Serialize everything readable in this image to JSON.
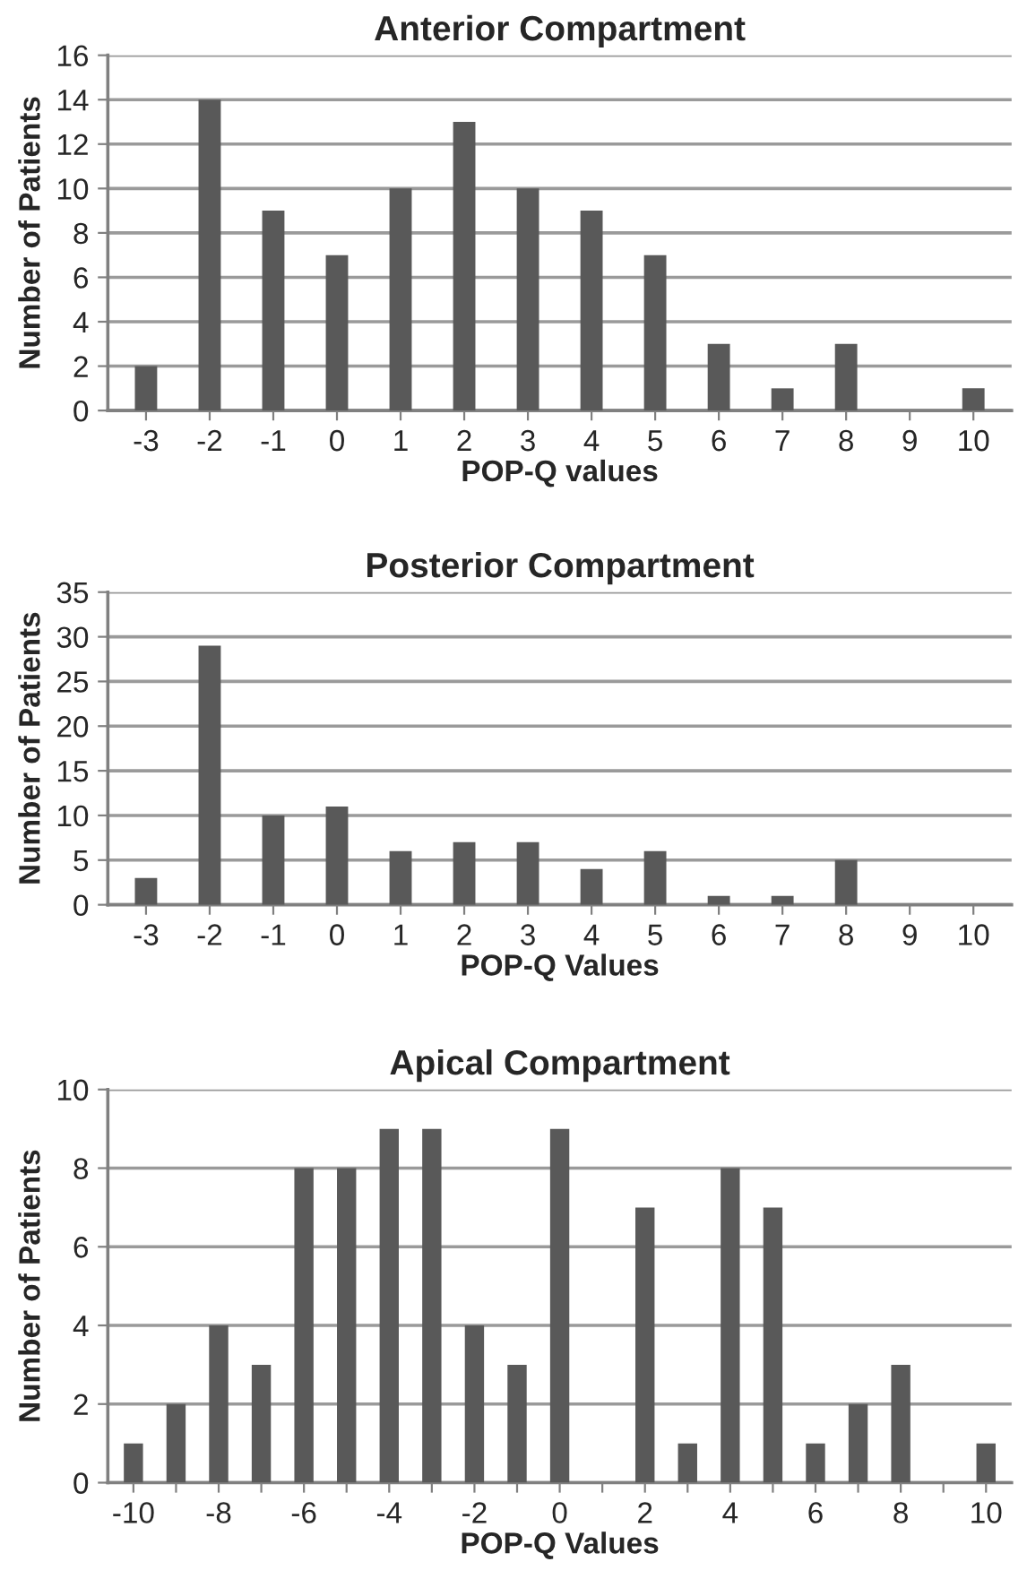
{
  "chart_data": [
    {
      "type": "bar",
      "title": "Anterior Compartment",
      "xlabel": "POP-Q values",
      "ylabel": "Number of Patients",
      "categories": [
        "-3",
        "-2",
        "-1",
        "0",
        "1",
        "2",
        "3",
        "4",
        "5",
        "6",
        "7",
        "8",
        "9",
        "10"
      ],
      "values": [
        2,
        14,
        9,
        7,
        10,
        13,
        10,
        9,
        7,
        3,
        1,
        3,
        0,
        1
      ],
      "color": "#595959",
      "ylim": [
        0,
        16
      ],
      "yticks": [
        0,
        2,
        4,
        6,
        8,
        10,
        12,
        14,
        16
      ],
      "grid": "y",
      "legend": false
    },
    {
      "type": "bar",
      "title": "Posterior Compartment",
      "xlabel": "POP-Q Values",
      "ylabel": "Number of Patients",
      "categories": [
        "-3",
        "-2",
        "-1",
        "0",
        "1",
        "2",
        "3",
        "4",
        "5",
        "6",
        "7",
        "8",
        "9",
        "10"
      ],
      "values": [
        3,
        29,
        10,
        11,
        6,
        7,
        7,
        4,
        6,
        1,
        1,
        5,
        0,
        0
      ],
      "color": "#595959",
      "ylim": [
        0,
        35
      ],
      "yticks": [
        0,
        5,
        10,
        15,
        20,
        25,
        30,
        35
      ],
      "grid": "y",
      "legend": false
    },
    {
      "type": "bar",
      "title": "Apical Compartment",
      "xlabel": "POP-Q Values",
      "ylabel": "Number of Patients",
      "categories": [
        "-10",
        null,
        "-8",
        null,
        "-6",
        null,
        "-4",
        null,
        "-2",
        null,
        "0",
        null,
        "2",
        null,
        "4",
        null,
        "6",
        null,
        "8",
        null,
        "10"
      ],
      "values": [
        1,
        2,
        4,
        3,
        8,
        8,
        9,
        9,
        4,
        3,
        9,
        0,
        7,
        1,
        8,
        7,
        1,
        2,
        3,
        0,
        1
      ],
      "color": "#595959",
      "ylim": [
        0,
        10
      ],
      "yticks": [
        0,
        2,
        4,
        6,
        8,
        10
      ],
      "grid": "y",
      "legend": false
    }
  ]
}
